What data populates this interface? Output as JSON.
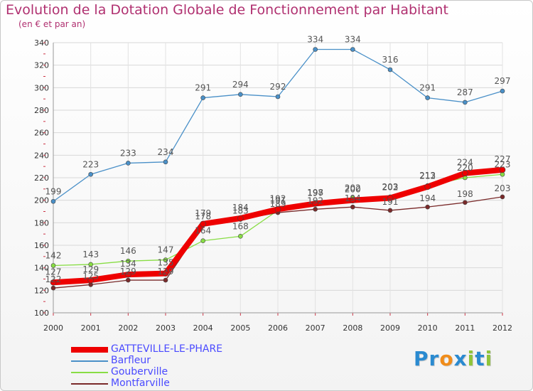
{
  "header": {
    "title": "Evolution de la Dotation Globale de Fonctionnement par Habitant",
    "subtitle": "(en € et par an)"
  },
  "brand": {
    "letters": [
      "P",
      "r",
      "o",
      "x",
      "i",
      "t",
      "i"
    ],
    "colors": [
      "#2a8ad0",
      "#2a8ad0",
      "#f08c1a",
      "#2a8ad0",
      "#8fc43a",
      "#2a8ad0",
      "#8fc43a"
    ]
  },
  "chart_data": {
    "type": "line",
    "title": "Evolution de la Dotation Globale de Fonctionnement par Habitant",
    "subtitle": "(en € et par an)",
    "x": [
      "2000",
      "2001",
      "2002",
      "2003",
      "2004",
      "2005",
      "2006",
      "2007",
      "2008",
      "2009",
      "2010",
      "2011",
      "2012"
    ],
    "ylim": [
      100,
      340
    ],
    "yticks": [
      100,
      120,
      140,
      160,
      180,
      200,
      220,
      240,
      260,
      280,
      300,
      320,
      340
    ],
    "grid": true,
    "legend_position": "bottom-left",
    "series": [
      {
        "name": "GATTEVILLE-LE-PHARE",
        "color": "#ee0000",
        "values": [
          127,
          129,
          134,
          135,
          179,
          184,
          192,
          197,
          200,
          202,
          212,
          224,
          227
        ]
      },
      {
        "name": "Barfleur",
        "color": "#4a90c8",
        "values": [
          199,
          223,
          233,
          234,
          291,
          294,
          292,
          334,
          334,
          316,
          291,
          287,
          297
        ]
      },
      {
        "name": "Gouberville",
        "color": "#88dd44",
        "values": [
          142,
          143,
          146,
          147,
          164,
          168,
          191,
          198,
          202,
          203,
          213,
          220,
          223
        ]
      },
      {
        "name": "Montfarville",
        "color": "#7a2a2a",
        "values": [
          122,
          125,
          129,
          129,
          178,
          183,
          189,
          192,
          194,
          191,
          194,
          198,
          203
        ]
      }
    ],
    "labels_shown": [
      [
        127,
        129,
        134,
        135,
        179,
        184,
        192,
        197,
        200,
        202,
        212,
        224,
        227
      ],
      [
        199,
        223,
        233,
        234,
        291,
        294,
        292,
        334,
        334,
        316,
        291,
        287,
        297
      ],
      [
        142,
        143,
        146,
        147,
        164,
        168,
        191,
        198,
        202,
        203,
        213,
        220,
        223
      ],
      [
        122,
        125,
        129,
        129,
        178,
        183,
        189,
        192,
        194,
        191,
        194,
        198,
        203
      ]
    ]
  }
}
